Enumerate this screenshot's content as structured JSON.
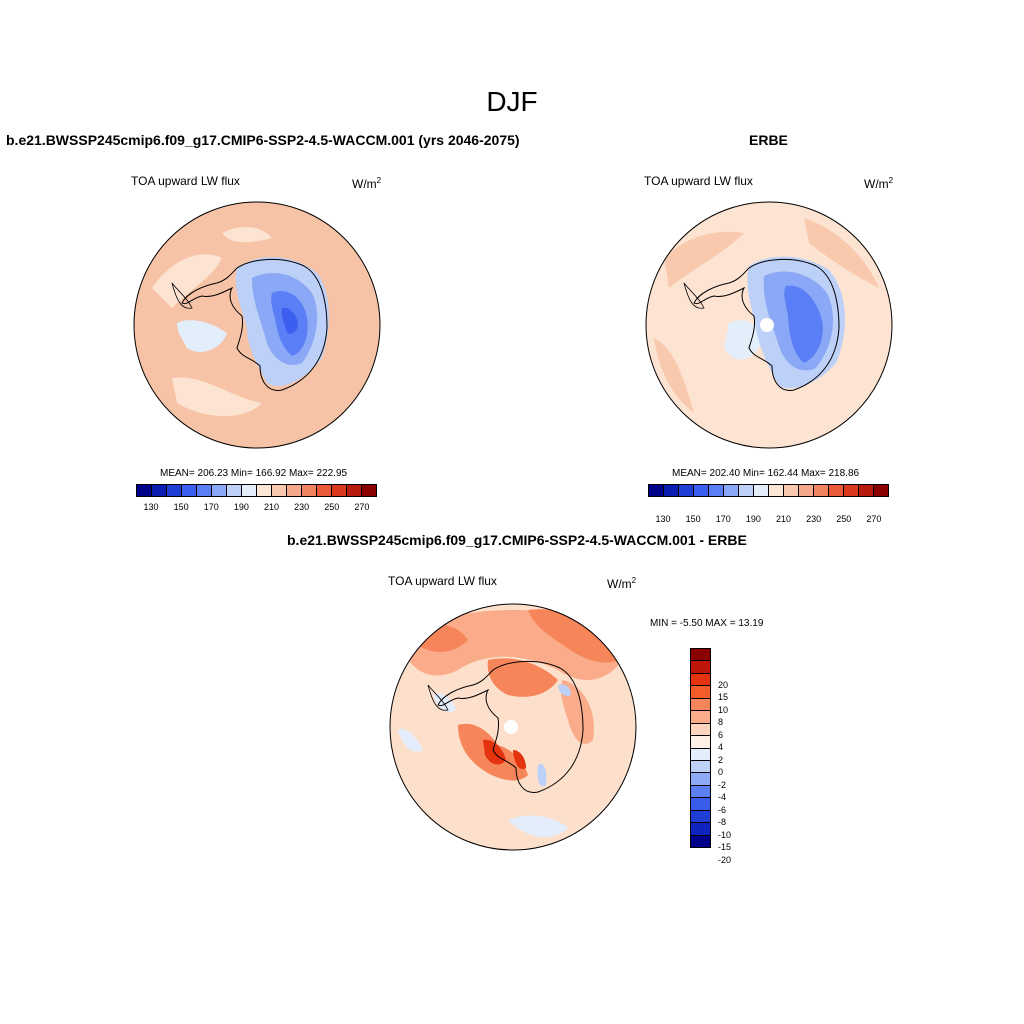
{
  "figure": {
    "title": "DJF"
  },
  "panels": [
    {
      "title": "b.e21.BWSSP245cmip6.f09_g17.CMIP6-SSP2-4.5-WACCM.001 (yrs 2046-2075)",
      "variable": "TOA upward LW flux",
      "units": "W/m",
      "units_sup": "2",
      "stats": "MEAN= 206.23  Min= 166.92  Max= 222.95",
      "map_fill": "#f6c3a6"
    },
    {
      "title": "ERBE",
      "variable": "TOA upward LW flux",
      "units": "W/m",
      "units_sup": "2",
      "stats": "MEAN= 202.40  Min= 162.44  Max= 218.86",
      "map_fill": "#fde3d2"
    },
    {
      "title": "b.e21.BWSSP245cmip6.f09_g17.CMIP6-SSP2-4.5-WACCM.001 - ERBE",
      "variable": "TOA upward LW flux",
      "units": "W/m",
      "units_sup": "2",
      "stats": "MIN =  -5.50 MAX =  13.19",
      "map_fill": "#fde0cc"
    }
  ],
  "colorbar_abs": {
    "colors": [
      "#00008b",
      "#0a1fb0",
      "#1e3ed6",
      "#3d5ff0",
      "#5a7ef5",
      "#8aa8f6",
      "#bcd0f8",
      "#e3eefb",
      "#fde6d6",
      "#f9c9ae",
      "#f6a98a",
      "#f18460",
      "#ea5a39",
      "#d93a1e",
      "#b71d0d",
      "#8b0000"
    ],
    "ticks": [
      "130",
      "150",
      "170",
      "190",
      "210",
      "230",
      "250",
      "270"
    ]
  },
  "colorbar_diff": {
    "colors": [
      "#8b0000",
      "#c0160a",
      "#e5330f",
      "#f45c29",
      "#f7855a",
      "#f9ab8a",
      "#fdd4bd",
      "#fef0e5",
      "#e3edfb",
      "#bcd0f8",
      "#8caaf6",
      "#5c7ff3",
      "#3a5cea",
      "#1e3ed6",
      "#0f24bf",
      "#00008b"
    ],
    "ticks": [
      "20",
      "15",
      "10",
      "8",
      "6",
      "4",
      "2",
      "0",
      "-2",
      "-4",
      "-6",
      "-8",
      "-10",
      "-15",
      "-20"
    ]
  }
}
